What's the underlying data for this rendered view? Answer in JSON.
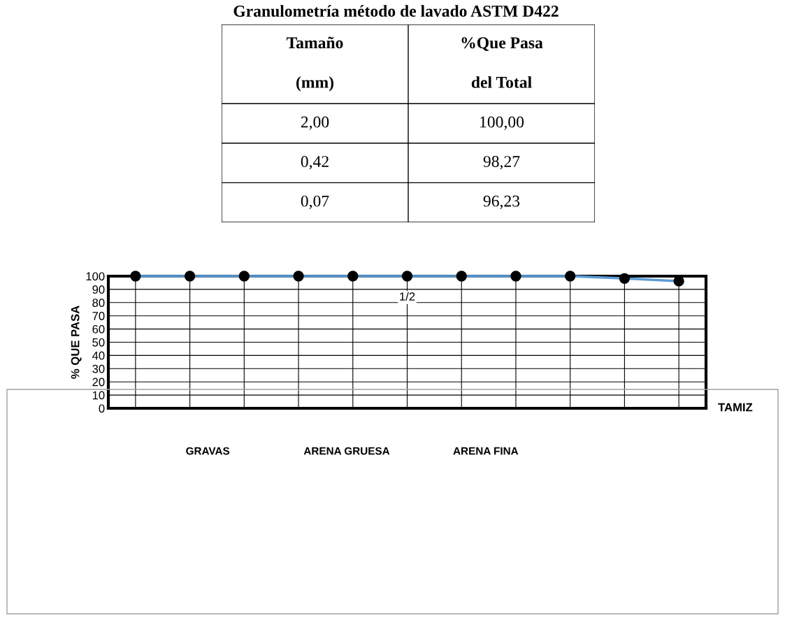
{
  "chart_data": {
    "type": "line",
    "title": "Granulometría método de lavado ASTM D422",
    "ylabel": "% QUE PASA",
    "xlabel": "TAMIZ",
    "categories": [
      null,
      null,
      null,
      null,
      null,
      null,
      null,
      null,
      null,
      null,
      null
    ],
    "series": [
      {
        "color": "#5b9bd5",
        "values": [
          100,
          100,
          100,
          100,
          100,
          100,
          100,
          100,
          100,
          98.27,
          96.23
        ]
      }
    ],
    "value_labels": [
      null,
      null,
      null,
      null,
      null,
      "1/2",
      null,
      null,
      null,
      null,
      null
    ],
    "marker": "circle",
    "ylim": [
      0,
      100
    ],
    "yticks": [
      0,
      10,
      20,
      30,
      40,
      50,
      60,
      70,
      80,
      90,
      100
    ],
    "grid": true,
    "annotations": [
      "Tamaño",
      "%Que Pasa",
      "(mm)",
      "del Total",
      "2,00",
      "100,00",
      "0,42",
      "98,27",
      "0,07",
      "96,23",
      "GRAVAS",
      "ARENA GRUESA",
      "ARENA FINA"
    ]
  }
}
